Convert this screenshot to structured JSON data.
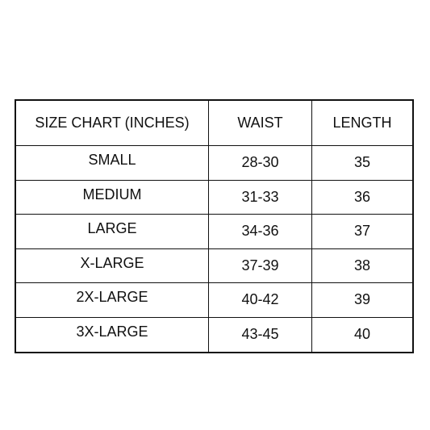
{
  "table": {
    "headers": [
      "SIZE CHART (INCHES)",
      "WAIST",
      "LENGTH"
    ],
    "rows": [
      {
        "size": "SMALL",
        "waist": "28-30",
        "length": "35"
      },
      {
        "size": "MEDIUM",
        "waist": "31-33",
        "length": "36"
      },
      {
        "size": "LARGE",
        "waist": "34-36",
        "length": "37"
      },
      {
        "size": "X-LARGE",
        "waist": "37-39",
        "length": "38"
      },
      {
        "size": "2X-LARGE",
        "waist": "40-42",
        "length": "39"
      },
      {
        "size": "3X-LARGE",
        "waist": "43-45",
        "length": "40"
      }
    ]
  }
}
